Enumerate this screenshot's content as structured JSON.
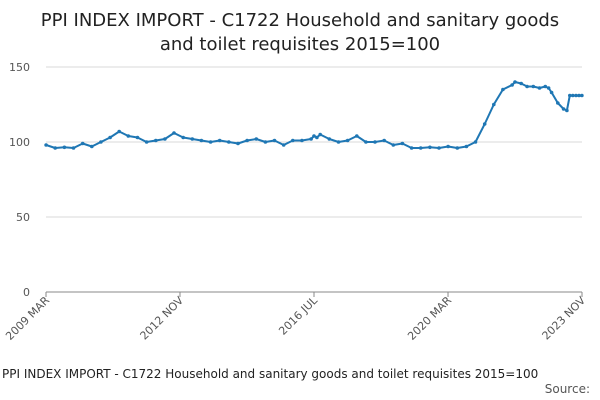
{
  "chart_data": {
    "type": "line",
    "title_lines": [
      "PPI INDEX IMPORT - C1722 Household and sanitary goods",
      "and toilet requisites 2015=100"
    ],
    "footer_title": "PPI INDEX IMPORT - C1722 Household and sanitary goods and toilet requisites 2015=100",
    "source_label": "Source:",
    "colors": {
      "line": "#1f77b4",
      "grid": "#d9d9d9",
      "axis": "#888888"
    },
    "grid": true,
    "ylim": [
      0,
      150
    ],
    "xlim": [
      2009.167,
      2023.833
    ],
    "y_ticks": [
      {
        "value": 0,
        "label": "0"
      },
      {
        "value": 50,
        "label": "50"
      },
      {
        "value": 100,
        "label": "100"
      },
      {
        "value": 150,
        "label": "150"
      }
    ],
    "x_ticks": [
      {
        "value": 2009.167,
        "label": "2009 MAR"
      },
      {
        "value": 2012.833,
        "label": "2012 NOV"
      },
      {
        "value": 2016.5,
        "label": "2016 JUL"
      },
      {
        "value": 2020.167,
        "label": "2020 MAR"
      },
      {
        "value": 2023.833,
        "label": "2023 NOV"
      }
    ],
    "series": [
      {
        "x": [
          2009.17,
          2009.42,
          2009.67,
          2009.92,
          2010.17,
          2010.42,
          2010.67,
          2010.92,
          2011.17,
          2011.42,
          2011.67,
          2011.92,
          2012.17,
          2012.42,
          2012.67,
          2012.92,
          2013.17,
          2013.42,
          2013.67,
          2013.92,
          2014.17,
          2014.42,
          2014.67,
          2014.92,
          2015.17,
          2015.42,
          2015.67,
          2015.92,
          2016.17,
          2016.42,
          2016.5,
          2016.58,
          2016.67,
          2016.92,
          2017.17,
          2017.42,
          2017.67,
          2017.92,
          2018.17,
          2018.42,
          2018.67,
          2018.92,
          2019.17,
          2019.42,
          2019.67,
          2019.92,
          2020.17,
          2020.42,
          2020.67,
          2020.92,
          2021.17,
          2021.42,
          2021.67,
          2021.92,
          2022.0,
          2022.17,
          2022.33,
          2022.5,
          2022.67,
          2022.83,
          2022.92,
          2023.0,
          2023.17,
          2023.33,
          2023.42,
          2023.5,
          2023.58,
          2023.67,
          2023.75,
          2023.83
        ],
        "y": [
          98,
          96,
          96.5,
          96,
          99,
          97,
          100,
          103,
          107,
          104,
          103,
          100,
          101,
          102,
          106,
          103,
          102,
          101,
          100,
          101,
          100,
          99,
          101,
          102,
          100,
          101,
          98,
          101,
          101,
          102,
          104,
          103,
          105,
          102,
          100,
          101,
          104,
          100,
          100,
          101,
          98,
          99,
          96,
          96,
          96.5,
          96,
          97,
          96,
          97,
          100,
          112,
          125,
          135,
          138,
          140,
          139,
          137,
          137,
          136,
          137,
          136,
          133,
          126,
          122,
          121,
          131,
          131,
          131,
          131,
          131
        ]
      }
    ]
  }
}
